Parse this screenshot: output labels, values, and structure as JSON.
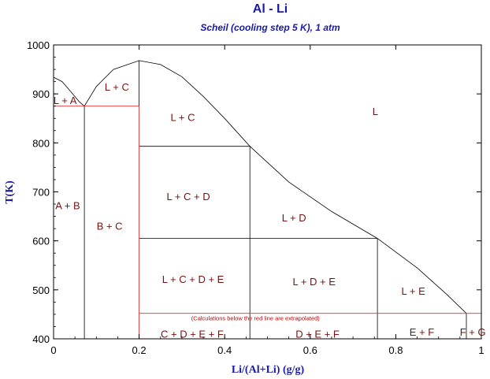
{
  "chart_data": {
    "type": "phase-diagram",
    "title": "Al - Li",
    "subtitle": "Scheil (cooling step 5 K), 1 atm",
    "xlabel": "Li/(Al+Li) (g/g)",
    "ylabel": "T(K)",
    "xlim": [
      0,
      1
    ],
    "ylim": [
      400,
      1000
    ],
    "xticks": [
      0,
      0.2,
      0.4,
      0.6,
      0.8,
      1
    ],
    "xtick_labels": [
      "0",
      "0.2",
      "0.4",
      "0.6",
      "0.8",
      "1"
    ],
    "yticks": [
      400,
      500,
      600,
      700,
      800,
      900,
      1000
    ],
    "ytick_labels": [
      "400",
      "500",
      "600",
      "700",
      "800",
      "900",
      "1000"
    ],
    "grid": false,
    "colors": {
      "boundary": "#000000",
      "scheil": "#e03030",
      "label": "#7a1010",
      "title": "#1a1aa6"
    },
    "liquidus_left": [
      [
        0,
        934
      ],
      [
        0.02,
        925
      ],
      [
        0.04,
        905
      ],
      [
        0.06,
        884
      ],
      [
        0.072,
        875
      ]
    ],
    "liquidus_right": [
      [
        0.072,
        875
      ],
      [
        0.1,
        915
      ],
      [
        0.14,
        950
      ],
      [
        0.2,
        968
      ],
      [
        0.25,
        960
      ],
      [
        0.3,
        935
      ],
      [
        0.35,
        895
      ],
      [
        0.4,
        850
      ],
      [
        0.459,
        793
      ],
      [
        0.55,
        720
      ],
      [
        0.65,
        660
      ],
      [
        0.757,
        605
      ],
      [
        0.85,
        545
      ],
      [
        0.92,
        490
      ],
      [
        0.965,
        452
      ]
    ],
    "black_lines": [
      [
        [
          0.072,
          875
        ],
        [
          0.072,
          400
        ]
      ],
      [
        [
          0.2,
          968
        ],
        [
          0.2,
          875
        ]
      ],
      [
        [
          0.2,
          793
        ],
        [
          0.459,
          793
        ]
      ],
      [
        [
          0.459,
          793
        ],
        [
          0.459,
          400
        ]
      ],
      [
        [
          0.2,
          605
        ],
        [
          0.757,
          605
        ]
      ],
      [
        [
          0.757,
          605
        ],
        [
          0.757,
          400
        ]
      ],
      [
        [
          0.965,
          452
        ],
        [
          0.965,
          400
        ]
      ]
    ],
    "red_lines": [
      [
        [
          0,
          875
        ],
        [
          0.2,
          875
        ]
      ],
      [
        [
          0.2,
          875
        ],
        [
          0.2,
          400
        ]
      ],
      [
        [
          0.2,
          452
        ],
        [
          1,
          452
        ]
      ]
    ],
    "region_labels": [
      {
        "text": "L + A",
        "x": 0.027,
        "y": 885
      },
      {
        "text": "L + C",
        "x": 0.148,
        "y": 912
      },
      {
        "text": "L + C",
        "x": 0.302,
        "y": 850
      },
      {
        "text": "L",
        "x": 0.752,
        "y": 862
      },
      {
        "text": "A + B",
        "x": 0.033,
        "y": 670
      },
      {
        "text": "B + C",
        "x": 0.131,
        "y": 628
      },
      {
        "text": "L + C + D",
        "x": 0.315,
        "y": 689
      },
      {
        "text": "L + D",
        "x": 0.562,
        "y": 645
      },
      {
        "text": "L + C + D + E",
        "x": 0.326,
        "y": 520
      },
      {
        "text": "L + D + E",
        "x": 0.609,
        "y": 515
      },
      {
        "text": "L + E",
        "x": 0.841,
        "y": 496
      },
      {
        "text": "C + D + E + F",
        "x": 0.324,
        "y": 408
      },
      {
        "text": "D + E + F",
        "x": 0.617,
        "y": 408
      },
      {
        "text": "E + F",
        "x": 0.861,
        "y": 412
      },
      {
        "text": "F + G",
        "x": 0.98,
        "y": 412
      }
    ],
    "annotation": {
      "text": "(Calculations below the red line are extrapolated)",
      "x": 0.472,
      "y": 441
    }
  }
}
